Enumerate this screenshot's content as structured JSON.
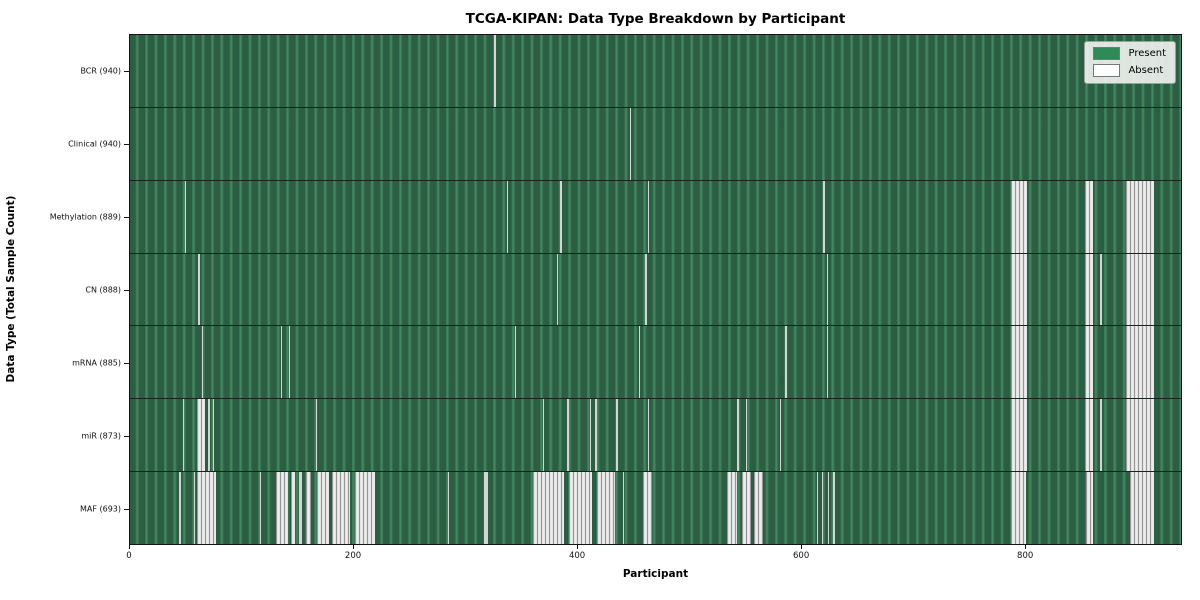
{
  "title": "TCGA-KIPAN: Data Type Breakdown by Participant",
  "xlabel": "Participant",
  "ylabel": "Data Type (Total Sample Count)",
  "legend": {
    "present_label": "Present",
    "absent_label": "Absent",
    "present_color": "#2e8b57",
    "absent_color": "#ffffff"
  },
  "chart_data": {
    "type": "heatmap",
    "title": "TCGA-KIPAN: Data Type Breakdown by Participant",
    "xlabel": "Participant",
    "ylabel": "Data Type (Total Sample Count)",
    "x_range": [
      0,
      940
    ],
    "x_ticks": [
      0,
      200,
      400,
      600,
      800
    ],
    "legend_position": "upper right",
    "grid": false,
    "value_legend": {
      "present": "green",
      "absent": "white"
    },
    "rows": [
      {
        "data_type": "BCR",
        "label": "BCR (940)",
        "total": 940,
        "absent_ranges": [
          [
            326,
            327
          ]
        ]
      },
      {
        "data_type": "Clinical",
        "label": "Clinical (940)",
        "total": 940,
        "absent_ranges": [
          [
            447,
            448
          ]
        ]
      },
      {
        "data_type": "Methylation",
        "label": "Methylation (889)",
        "total": 889,
        "absent_ranges": [
          [
            49,
            50
          ],
          [
            337,
            338
          ],
          [
            385,
            386
          ],
          [
            463,
            464
          ],
          [
            620,
            621
          ],
          [
            788,
            802
          ],
          [
            854,
            861
          ],
          [
            891,
            916
          ]
        ]
      },
      {
        "data_type": "CN",
        "label": "CN (888)",
        "total": 888,
        "absent_ranges": [
          [
            61,
            62
          ],
          [
            382,
            383
          ],
          [
            461,
            462
          ],
          [
            623,
            624
          ],
          [
            788,
            802
          ],
          [
            854,
            861
          ],
          [
            868,
            869
          ],
          [
            891,
            916
          ]
        ]
      },
      {
        "data_type": "mRNA",
        "label": "mRNA (885)",
        "total": 885,
        "absent_ranges": [
          [
            64,
            65
          ],
          [
            135,
            136
          ],
          [
            142,
            143
          ],
          [
            344,
            345
          ],
          [
            455,
            456
          ],
          [
            586,
            587
          ],
          [
            623,
            624
          ],
          [
            788,
            802
          ],
          [
            854,
            861
          ],
          [
            891,
            916
          ]
        ]
      },
      {
        "data_type": "miR",
        "label": "miR (873)",
        "total": 873,
        "absent_ranges": [
          [
            47,
            48
          ],
          [
            60,
            67
          ],
          [
            70,
            71
          ],
          [
            74,
            75
          ],
          [
            166,
            167
          ],
          [
            369,
            370
          ],
          [
            391,
            392
          ],
          [
            411,
            412
          ],
          [
            416,
            417
          ],
          [
            435,
            436
          ],
          [
            463,
            464
          ],
          [
            543,
            544
          ],
          [
            551,
            552
          ],
          [
            581,
            582
          ],
          [
            788,
            802
          ],
          [
            854,
            861
          ],
          [
            868,
            869
          ],
          [
            891,
            916
          ]
        ]
      },
      {
        "data_type": "MAF",
        "label": "MAF (693)",
        "total": 693,
        "absent_ranges": [
          [
            44,
            45
          ],
          [
            57,
            58
          ],
          [
            60,
            77
          ],
          [
            116,
            117
          ],
          [
            131,
            141
          ],
          [
            144,
            148
          ],
          [
            151,
            154
          ],
          [
            157,
            162
          ],
          [
            167,
            178
          ],
          [
            181,
            197
          ],
          [
            201,
            219
          ],
          [
            284,
            285
          ],
          [
            317,
            320
          ],
          [
            360,
            388
          ],
          [
            393,
            413
          ],
          [
            418,
            434
          ],
          [
            441,
            442
          ],
          [
            459,
            467
          ],
          [
            534,
            543
          ],
          [
            547,
            555
          ],
          [
            558,
            566
          ],
          [
            614,
            615
          ],
          [
            619,
            620
          ],
          [
            624,
            625
          ],
          [
            629,
            630
          ],
          [
            788,
            801
          ],
          [
            855,
            861
          ],
          [
            894,
            916
          ]
        ]
      }
    ]
  }
}
